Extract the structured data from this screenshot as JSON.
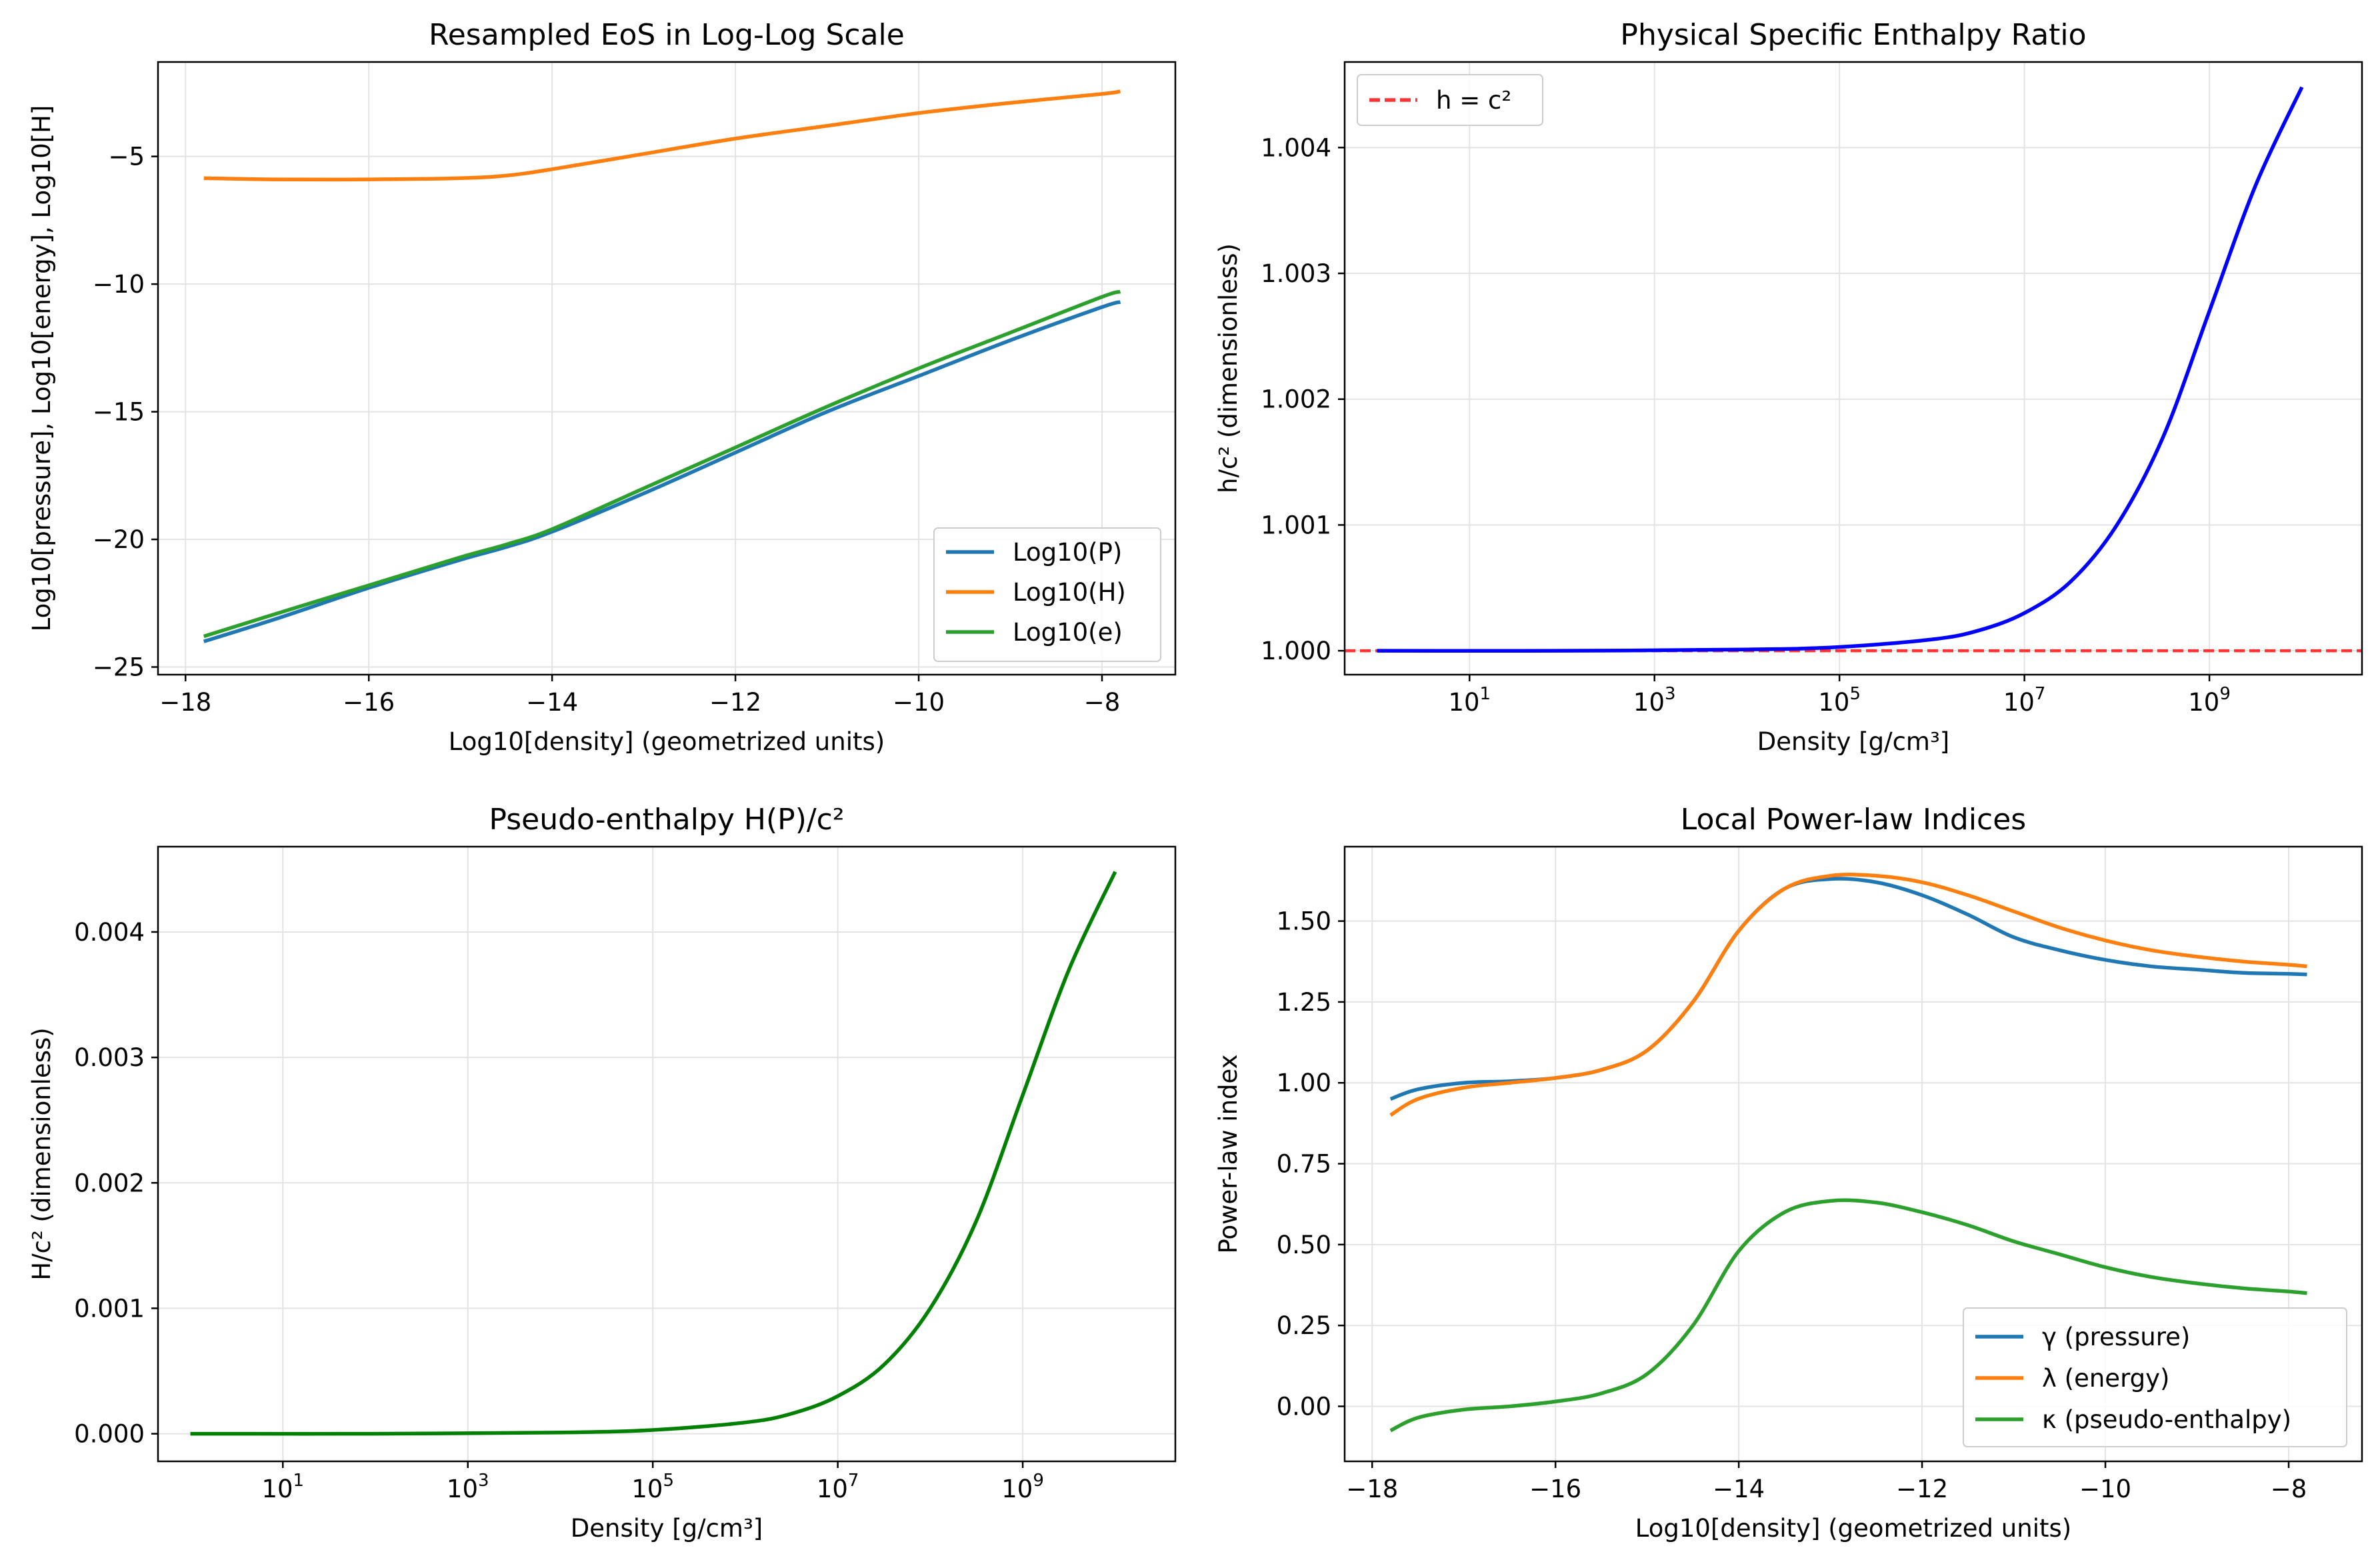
{
  "chart_data": [
    {
      "id": "p1",
      "type": "line",
      "title": "Resampled EoS in Log-Log Scale",
      "xlabel": "Log10[density] (geometrized units)",
      "ylabel": "Log10[pressure], Log10[energy], Log10[H]",
      "xlim": [
        -18.3,
        -7.2
      ],
      "ylim": [
        -25.3,
        -1.3
      ],
      "xscale": "linear",
      "xticks": [
        -18,
        -16,
        -14,
        -12,
        -10,
        -8
      ],
      "xtick_labels": [
        "−18",
        "−16",
        "−14",
        "−12",
        "−10",
        "−8"
      ],
      "yticks": [
        -25,
        -20,
        -15,
        -10,
        -5
      ],
      "ytick_labels": [
        "−25",
        "−20",
        "−15",
        "−10",
        "−5"
      ],
      "grid": true,
      "legend": "lower-right",
      "series": [
        {
          "name": "Log10(P)",
          "color": "#1f77b4",
          "x": [
            -17.8,
            -17,
            -16,
            -15,
            -14.5,
            -14,
            -13,
            -12,
            -11,
            -10,
            -9,
            -8,
            -7.8
          ],
          "y": [
            -24.0,
            -23.1,
            -21.9,
            -20.8,
            -20.3,
            -19.7,
            -18.2,
            -16.6,
            -15.0,
            -13.6,
            -12.2,
            -10.9,
            -10.7
          ]
        },
        {
          "name": "Log10(H)",
          "color": "#ff7f0e",
          "x": [
            -17.8,
            -17,
            -16,
            -15,
            -14.5,
            -14,
            -13,
            -12,
            -11,
            -10,
            -9,
            -8,
            -7.8
          ],
          "y": [
            -5.85,
            -5.9,
            -5.9,
            -5.85,
            -5.75,
            -5.5,
            -4.9,
            -4.3,
            -3.8,
            -3.3,
            -2.9,
            -2.55,
            -2.45
          ]
        },
        {
          "name": "Log10(e)",
          "color": "#2ca02c",
          "x": [
            -17.8,
            -17,
            -16,
            -15,
            -14.5,
            -14,
            -13,
            -12,
            -11,
            -10,
            -9,
            -8,
            -7.8
          ],
          "y": [
            -23.8,
            -22.9,
            -21.8,
            -20.7,
            -20.2,
            -19.6,
            -18.0,
            -16.4,
            -14.8,
            -13.3,
            -11.9,
            -10.5,
            -10.3
          ]
        }
      ]
    },
    {
      "id": "p2",
      "type": "line",
      "title": "Physical Specific Enthalpy Ratio",
      "xlabel": "Density [g/cm³]",
      "ylabel": "h/c² (dimensionless)",
      "xlim": [
        -0.35,
        10.65
      ],
      "xscale": "log10",
      "ylim": [
        0.99981,
        1.00468
      ],
      "xticks": [
        1,
        3,
        5,
        7,
        9
      ],
      "xtick_labels": [
        {
          "base": "10",
          "exp": "1"
        },
        {
          "base": "10",
          "exp": "3"
        },
        {
          "base": "10",
          "exp": "5"
        },
        {
          "base": "10",
          "exp": "7"
        },
        {
          "base": "10",
          "exp": "9"
        }
      ],
      "yticks": [
        1.0,
        1.001,
        1.002,
        1.003,
        1.004
      ],
      "ytick_labels": [
        "1.000",
        "1.001",
        "1.002",
        "1.003",
        "1.004"
      ],
      "grid": true,
      "legend": "upper-left",
      "reference_line": {
        "name": "h = c²",
        "y": 1.0,
        "color": "#ff3333",
        "style": "dashed"
      },
      "series": [
        {
          "name": "",
          "color": "#0000ff",
          "x": [
            0,
            2,
            4,
            5,
            6,
            6.5,
            7,
            7.5,
            8,
            8.5,
            9,
            9.5,
            10
          ],
          "y": [
            1.0,
            1.0,
            1.00001,
            1.00003,
            1.00009,
            1.00016,
            1.0003,
            1.00055,
            1.001,
            1.0017,
            1.0027,
            1.0037,
            1.00448
          ]
        }
      ]
    },
    {
      "id": "p3",
      "type": "line",
      "title": "Pseudo-enthalpy H(P)/c²",
      "xlabel": "Density [g/cm³]",
      "ylabel": "H/c² (dimensionless)",
      "xlim": [
        -0.35,
        10.65
      ],
      "xscale": "log10",
      "ylim": [
        -0.00022,
        0.00468
      ],
      "xticks": [
        1,
        3,
        5,
        7,
        9
      ],
      "xtick_labels": [
        {
          "base": "10",
          "exp": "1"
        },
        {
          "base": "10",
          "exp": "3"
        },
        {
          "base": "10",
          "exp": "5"
        },
        {
          "base": "10",
          "exp": "7"
        },
        {
          "base": "10",
          "exp": "9"
        }
      ],
      "yticks": [
        0.0,
        0.001,
        0.002,
        0.003,
        0.004
      ],
      "ytick_labels": [
        "0.000",
        "0.001",
        "0.002",
        "0.003",
        "0.004"
      ],
      "grid": true,
      "series": [
        {
          "name": "",
          "color": "#008000",
          "x": [
            0,
            2,
            4,
            5,
            6,
            6.5,
            7,
            7.5,
            8,
            8.5,
            9,
            9.5,
            10
          ],
          "y": [
            0.0,
            0.0,
            1e-05,
            3e-05,
            9e-05,
            0.00016,
            0.0003,
            0.00055,
            0.001,
            0.0017,
            0.0027,
            0.0037,
            0.00448
          ]
        }
      ]
    },
    {
      "id": "p4",
      "type": "line",
      "title": "Local Power-law Indices",
      "xlabel": "Log10[density] (geometrized units)",
      "ylabel": "Power-law index",
      "xlim": [
        -18.3,
        -7.2
      ],
      "xscale": "linear",
      "ylim": [
        -0.17,
        1.73
      ],
      "xticks": [
        -18,
        -16,
        -14,
        -12,
        -10,
        -8
      ],
      "xtick_labels": [
        "−18",
        "−16",
        "−14",
        "−12",
        "−10",
        "−8"
      ],
      "yticks": [
        0.0,
        0.25,
        0.5,
        0.75,
        1.0,
        1.25,
        1.5
      ],
      "ytick_labels": [
        "0.00",
        "0.25",
        "0.50",
        "0.75",
        "1.00",
        "1.25",
        "1.50"
      ],
      "grid": true,
      "legend": "lower-right",
      "series": [
        {
          "name": "γ (pressure)",
          "color": "#1f77b4",
          "x": [
            -17.8,
            -17.5,
            -17,
            -16.5,
            -16,
            -15.5,
            -15,
            -14.5,
            -14,
            -13.5,
            -13,
            -12.5,
            -12,
            -11.5,
            -11,
            -10.5,
            -10,
            -9.5,
            -9,
            -8.5,
            -8,
            -7.8
          ],
          "y": [
            0.95,
            0.98,
            1.0,
            1.005,
            1.015,
            1.04,
            1.1,
            1.25,
            1.47,
            1.6,
            1.63,
            1.62,
            1.58,
            1.52,
            1.45,
            1.41,
            1.38,
            1.36,
            1.35,
            1.34,
            1.337,
            1.335
          ]
        },
        {
          "name": "λ (energy)",
          "color": "#ff7f0e",
          "x": [
            -17.8,
            -17.5,
            -17,
            -16.5,
            -16,
            -15.5,
            -15,
            -14.5,
            -14,
            -13.5,
            -13,
            -12.5,
            -12,
            -11.5,
            -11,
            -10.5,
            -10,
            -9.5,
            -9,
            -8.5,
            -8,
            -7.8
          ],
          "y": [
            0.9,
            0.95,
            0.985,
            1.0,
            1.015,
            1.04,
            1.1,
            1.25,
            1.47,
            1.6,
            1.64,
            1.64,
            1.62,
            1.58,
            1.53,
            1.48,
            1.44,
            1.41,
            1.39,
            1.375,
            1.365,
            1.36
          ]
        },
        {
          "name": "κ (pseudo-enthalpy)",
          "color": "#2ca02c",
          "x": [
            -17.8,
            -17.5,
            -17,
            -16.5,
            -16,
            -15.5,
            -15,
            -14.5,
            -14,
            -13.5,
            -13,
            -12.5,
            -12,
            -11.5,
            -11,
            -10.5,
            -10,
            -9.5,
            -9,
            -8.5,
            -8,
            -7.8
          ],
          "y": [
            -0.075,
            -0.035,
            -0.01,
            0.0,
            0.015,
            0.04,
            0.1,
            0.25,
            0.48,
            0.6,
            0.635,
            0.63,
            0.6,
            0.56,
            0.51,
            0.47,
            0.43,
            0.4,
            0.38,
            0.365,
            0.355,
            0.35
          ]
        }
      ]
    }
  ]
}
